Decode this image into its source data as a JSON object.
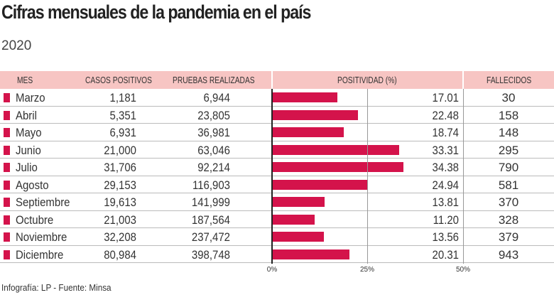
{
  "title": "Cifras mensuales de la pandemia en el país",
  "subtitle": "2020",
  "headers": {
    "mes": "MES",
    "casos": "CASOS POSITIVOS",
    "pruebas": "PRUEBAS REALIZADAS",
    "positividad": "POSITIVIDAD (%)",
    "fallecidos": "FALLECIDOS"
  },
  "footer": "Infografía: LP - Fuente: Minsa",
  "colors": {
    "bar": "#d4134b",
    "header": "#f7c5c3"
  },
  "chart_data": {
    "type": "table",
    "bar_column": "positividad",
    "xlim": [
      0,
      50
    ],
    "ticks": [
      "0%",
      "25%",
      "50%"
    ],
    "grid": true,
    "rows": [
      {
        "mes": "Marzo",
        "casos": "1,181",
        "pruebas": "6,944",
        "positividad": "17.01",
        "fallecidos": "30"
      },
      {
        "mes": "Abril",
        "casos": "5,351",
        "pruebas": "23,805",
        "positividad": "22.48",
        "fallecidos": "158"
      },
      {
        "mes": "Mayo",
        "casos": "6,931",
        "pruebas": "36,981",
        "positividad": "18.74",
        "fallecidos": "148"
      },
      {
        "mes": "Junio",
        "casos": "21,000",
        "pruebas": "63,046",
        "positividad": "33.31",
        "fallecidos": "295"
      },
      {
        "mes": "Julio",
        "casos": "31,706",
        "pruebas": "92,214",
        "positividad": "34.38",
        "fallecidos": "790"
      },
      {
        "mes": "Agosto",
        "casos": "29,153",
        "pruebas": "116,903",
        "positividad": "24.94",
        "fallecidos": "581"
      },
      {
        "mes": "Septiembre",
        "casos": "19,613",
        "pruebas": "141,999",
        "positividad": "13.81",
        "fallecidos": "370"
      },
      {
        "mes": "Octubre",
        "casos": "21,003",
        "pruebas": "187,564",
        "positividad": "11.20",
        "fallecidos": "328"
      },
      {
        "mes": "Noviembre",
        "casos": "32,208",
        "pruebas": "237,472",
        "positividad": "13.56",
        "fallecidos": "379"
      },
      {
        "mes": "Diciembre",
        "casos": "80,984",
        "pruebas": "398,748",
        "positividad": "20.31",
        "fallecidos": "943"
      }
    ]
  }
}
